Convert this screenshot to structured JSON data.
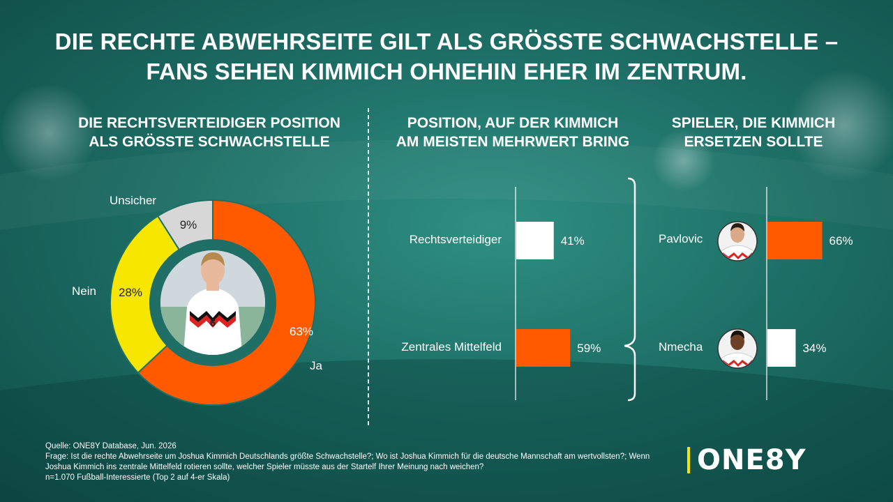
{
  "headline": {
    "line1": "DIE RECHTE ABWEHRSEITE GILT ALS GRÖSSTE SCHWACHSTELLE –",
    "line2": "FANS SEHEN KIMMICH OHNEHIN EHER IM ZENTRUM."
  },
  "colors": {
    "orange": "#ff5a00",
    "yellow": "#f7e600",
    "grey": "#d7d7d7",
    "white": "#ffffff",
    "teal": "#1f6f66"
  },
  "chart_data": [
    {
      "type": "pie",
      "title_line1": "DIE RECHTSVERTEIDIGER POSITION",
      "title_line2": "ALS GRÖSSTE SCHWACHSTELLE",
      "center_image": "player-photo-kimmich",
      "slices": [
        {
          "label": "Ja",
          "value": 63,
          "value_label": "63%",
          "color": "#ff5a00"
        },
        {
          "label": "Nein",
          "value": 28,
          "value_label": "28%",
          "color": "#f7e600"
        },
        {
          "label": "Unsicher",
          "value": 9,
          "value_label": "9%",
          "color": "#d7d7d7"
        }
      ]
    },
    {
      "type": "bar",
      "orientation": "horizontal",
      "title_line1": "POSITION, AUF DER KIMMICH",
      "title_line2": "AM MEISTEN MEHRWERT BRING",
      "categories": [
        "Rechtsverteidiger",
        "Zentrales Mittelfeld"
      ],
      "values": [
        41,
        59
      ],
      "value_labels": [
        "41%",
        "59%"
      ],
      "colors": [
        "#ffffff",
        "#ff5a00"
      ],
      "xlim": [
        0,
        100
      ]
    },
    {
      "type": "bar",
      "orientation": "horizontal",
      "title_line1": "SPIELER, DIE KIMMICH",
      "title_line2": "ERSETZEN SOLLTE",
      "categories": [
        "Pavlovic",
        "Nmecha"
      ],
      "values": [
        66,
        34
      ],
      "value_labels": [
        "66%",
        "34%"
      ],
      "colors": [
        "#ff5a00",
        "#ffffff"
      ],
      "xlim": [
        0,
        100
      ],
      "icons": [
        "player-avatar-pavlovic",
        "player-avatar-nmecha"
      ]
    }
  ],
  "footer": {
    "source": "Quelle: ONE8Y Database, Jun. 2026",
    "question": "Frage: Ist die rechte Abwehrseite um Joshua Kimmich Deutschlands größte Schwachstelle?; Wo ist Joshua Kimmich für die deutsche Mannschaft am wertvollsten?; Wenn Joshua Kimmich ins zentrale Mittelfeld rotieren sollte, welcher Spieler müsste aus der Startelf Ihrer Meinung nach weichen?",
    "sample": "n=1.070 Fußball-Interessierte (Top 2 auf 4-er Skala)"
  },
  "logo": {
    "text": "ONE8Y"
  }
}
